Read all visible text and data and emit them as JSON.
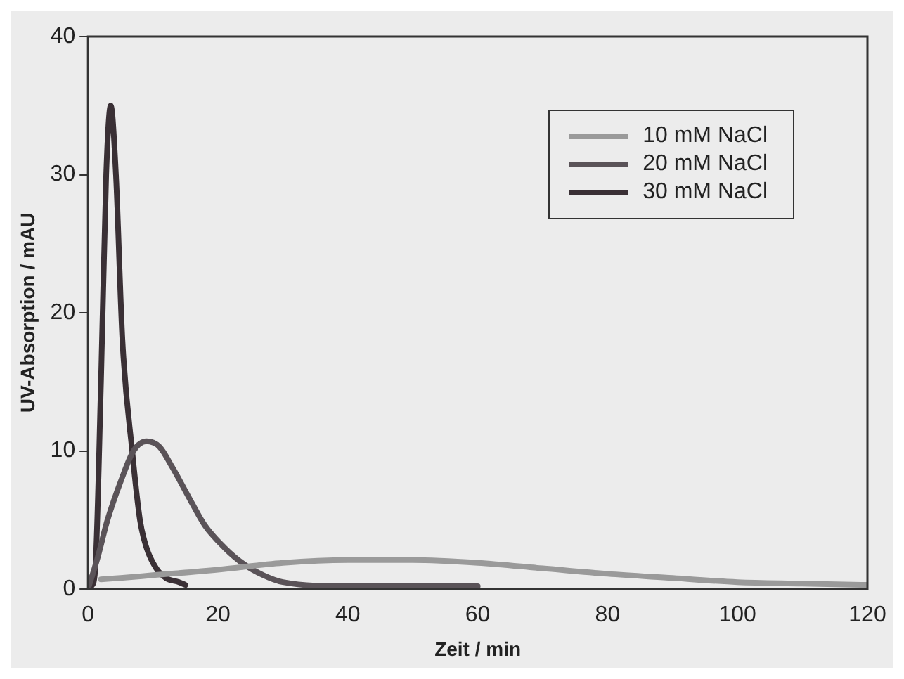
{
  "chart_data": {
    "type": "line",
    "xlabel": "Zeit / min",
    "ylabel": "UV-Absorption / mAU",
    "xlim": [
      0,
      120
    ],
    "xticks": [
      0,
      20,
      40,
      60,
      80,
      100,
      120
    ],
    "ylim": [
      0,
      40
    ],
    "yticks": [
      0,
      10,
      20,
      30,
      40
    ],
    "grid": false,
    "legend": "top right",
    "marker": "none",
    "line_style": "solid",
    "series": [
      {
        "name": "10 mM NaCl",
        "color": "#9a9a9a",
        "x": [
          2,
          5,
          10,
          20,
          30,
          40,
          50,
          60,
          70,
          80,
          90,
          100,
          110,
          120
        ],
        "values": [
          0.7,
          0.8,
          1.0,
          1.4,
          1.9,
          2.1,
          2.1,
          1.9,
          1.5,
          1.1,
          0.8,
          0.5,
          0.4,
          0.3
        ]
      },
      {
        "name": "20 mM NaCl",
        "color": "#5a5358",
        "x": [
          0,
          1.5,
          3,
          5.2,
          7,
          9,
          11,
          13,
          15.8,
          18,
          21,
          24,
          27,
          30,
          40,
          50,
          60
        ],
        "values": [
          0,
          2.3,
          5,
          8,
          10,
          10.7,
          10.3,
          8.8,
          6.4,
          4.6,
          3,
          1.8,
          1,
          0.5,
          0.2,
          0.2,
          0.2
        ]
      },
      {
        "name": "30 mM NaCl",
        "color": "#3a3035",
        "x": [
          0,
          0.5,
          1.1,
          2,
          2.8,
          3.5,
          4.3,
          5.3,
          6.8,
          8,
          9,
          10.5,
          12,
          14,
          15
        ],
        "values": [
          0,
          0.2,
          1.3,
          15,
          30,
          35,
          30,
          18,
          10,
          5,
          3,
          1.5,
          0.8,
          0.5,
          0.3
        ]
      }
    ]
  }
}
